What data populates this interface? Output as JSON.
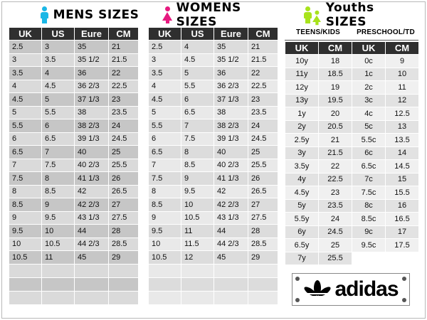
{
  "mens": {
    "title": "MENS  SIZES",
    "icon_color": "#1ab7e6",
    "headers": [
      "UK",
      "US",
      "Eure",
      "CM"
    ],
    "rows": [
      [
        "2.5",
        "3",
        "35",
        "21"
      ],
      [
        "3",
        "3.5",
        "35 1/2",
        "21.5"
      ],
      [
        "3.5",
        "4",
        "36",
        "22"
      ],
      [
        "4",
        "4.5",
        "36 2/3",
        "22.5"
      ],
      [
        "4.5",
        "5",
        "37 1/3",
        "23"
      ],
      [
        "5",
        "5.5",
        "38",
        "23.5"
      ],
      [
        "5.5",
        "6",
        "38 2/3",
        "24"
      ],
      [
        "6",
        "6.5",
        "39 1/3",
        "24.5"
      ],
      [
        "6.5",
        "7",
        "40",
        "25"
      ],
      [
        "7",
        "7.5",
        "40 2/3",
        "25.5"
      ],
      [
        "7.5",
        "8",
        "41 1/3",
        "26"
      ],
      [
        "8",
        "8.5",
        "42",
        "26.5"
      ],
      [
        "8.5",
        "9",
        "42 2/3",
        "27"
      ],
      [
        "9",
        "9.5",
        "43 1/3",
        "27.5"
      ],
      [
        "9.5",
        "10",
        "44",
        "28"
      ],
      [
        "10",
        "10.5",
        "44 2/3",
        "28.5"
      ],
      [
        "10.5",
        "11",
        "45",
        "29"
      ]
    ]
  },
  "womens": {
    "title": "WOMENS  SIZES",
    "icon_color": "#e6197f",
    "headers": [
      "UK",
      "US",
      "Eure",
      "CM"
    ],
    "rows": [
      [
        "2.5",
        "4",
        "35",
        "21"
      ],
      [
        "3",
        "4.5",
        "35 1/2",
        "21.5"
      ],
      [
        "3.5",
        "5",
        "36",
        "22"
      ],
      [
        "4",
        "5.5",
        "36 2/3",
        "22.5"
      ],
      [
        "4.5",
        "6",
        "37  1/3",
        "23"
      ],
      [
        "5",
        "6.5",
        "38",
        "23.5"
      ],
      [
        "5.5",
        "7",
        "38 2/3",
        "24"
      ],
      [
        "6",
        "7.5",
        "39 1/3",
        "24.5"
      ],
      [
        "6.5",
        "8",
        "40",
        "25"
      ],
      [
        "7",
        "8.5",
        "40 2/3",
        "25.5"
      ],
      [
        "7.5",
        "9",
        "41 1/3",
        "26"
      ],
      [
        "8",
        "9.5",
        "42",
        "26.5"
      ],
      [
        "8.5",
        "10",
        "42 2/3",
        "27"
      ],
      [
        "9",
        "10.5",
        "43 1/3",
        "27.5"
      ],
      [
        "9.5",
        "11",
        "44",
        "28"
      ],
      [
        "10",
        "11.5",
        "44 2/3",
        "28.5"
      ],
      [
        "10.5",
        "12",
        "45",
        "29"
      ]
    ]
  },
  "youths": {
    "title": "Youths  SIZES",
    "icon_color": "#a8e31c",
    "teens_label": "TEENS/KIDS",
    "preschool_label": "PRESCHOOL/TD",
    "headers": [
      "UK",
      "CM",
      "UK",
      "CM"
    ],
    "teens_rows": [
      [
        "10y",
        "18"
      ],
      [
        "11y",
        "18.5"
      ],
      [
        "12y",
        "19"
      ],
      [
        "13y",
        "19.5"
      ],
      [
        "1y",
        "20"
      ],
      [
        "2y",
        "20.5"
      ],
      [
        "2.5y",
        "21"
      ],
      [
        "3y",
        "21.5"
      ],
      [
        "3.5y",
        "22"
      ],
      [
        "4y",
        "22.5"
      ],
      [
        "4.5y",
        "23"
      ],
      [
        "5y",
        "23.5"
      ],
      [
        "5.5y",
        "24"
      ],
      [
        "6y",
        "24.5"
      ],
      [
        "6.5y",
        "25"
      ],
      [
        "7y",
        "25.5"
      ]
    ],
    "preschool_rows": [
      [
        "0c",
        "9"
      ],
      [
        "1c",
        "10"
      ],
      [
        "2c",
        "11"
      ],
      [
        "3c",
        "12"
      ],
      [
        "4c",
        "12.5"
      ],
      [
        "5c",
        "13"
      ],
      [
        "5.5c",
        "13.5"
      ],
      [
        "6c",
        "14"
      ],
      [
        "6.5c",
        "14.5"
      ],
      [
        "7c",
        "15"
      ],
      [
        "7.5c",
        "15.5"
      ],
      [
        "8c",
        "16"
      ],
      [
        "8.5c",
        "16.5"
      ],
      [
        "9c",
        "17"
      ],
      [
        "9.5c",
        "17.5"
      ]
    ]
  },
  "logo": {
    "text": "adidas"
  }
}
